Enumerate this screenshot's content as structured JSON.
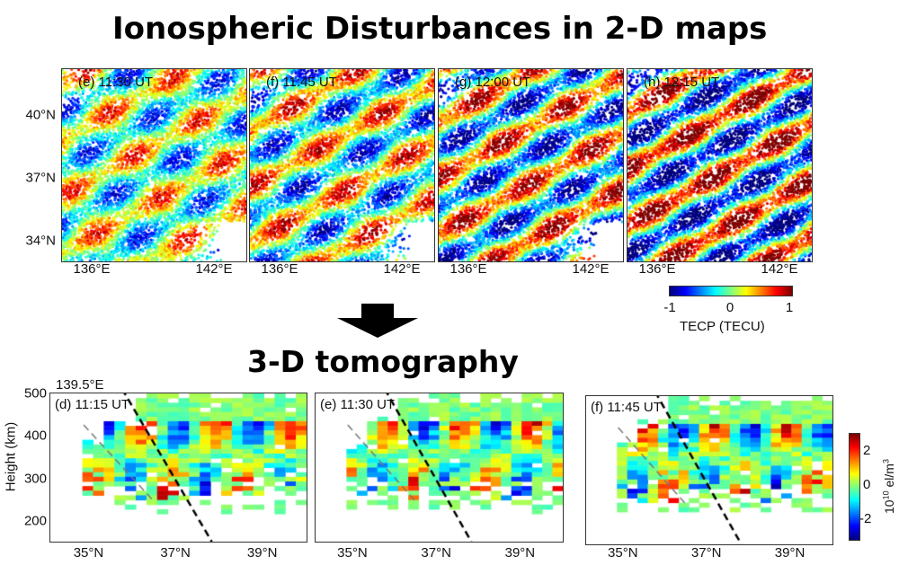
{
  "titles": {
    "top": "Ionospheric Disturbances in 2-D maps",
    "bottom": "3-D tomography"
  },
  "chart_data": [
    {
      "type": "scatter",
      "title": "Ionospheric Disturbances in 2-D maps",
      "panels": [
        {
          "label": "(e) 11:30 UT"
        },
        {
          "label": "(f) 11:45 UT"
        },
        {
          "label": "(g) 12:00 UT"
        },
        {
          "label": "(h) 12:15 UT"
        }
      ],
      "yticks": [
        "40°N",
        "37°N",
        "34°N"
      ],
      "xticks": [
        "136°E",
        "142°E"
      ],
      "colorbar": {
        "ticks": [
          "-1",
          "0",
          "1"
        ],
        "label": "TECP (TECU)",
        "range": [
          -1,
          1
        ],
        "colormap": "jet"
      }
    },
    {
      "type": "heatmap",
      "title": "3-D tomography",
      "panels": [
        {
          "label": "(d) 11:15 UT"
        },
        {
          "label": "(e) 11:30 UT"
        },
        {
          "label": "(f) 11:45 UT"
        }
      ],
      "annotation": "139.5°E",
      "ylabel": "Height (km)",
      "yticks": [
        "500",
        "400",
        "300",
        "200"
      ],
      "ylim": [
        150,
        500
      ],
      "xticks": [
        "35°N",
        "37°N",
        "39°N"
      ],
      "xlim": [
        34.1,
        40
      ],
      "colorbar": {
        "ticks": [
          "2",
          "0",
          "-2"
        ],
        "label_base": "10",
        "label_exp": "10",
        "label_unit": " el/m",
        "label_unit_exp": "3",
        "range": [
          -3,
          3
        ],
        "colormap": "jet"
      }
    }
  ]
}
